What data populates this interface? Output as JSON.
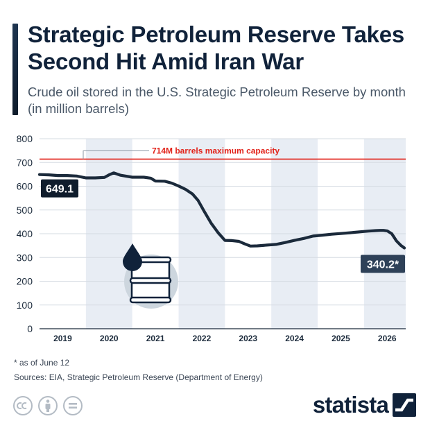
{
  "header": {
    "title": "Strategic Petroleum Reserve Takes Second Hit Amid Iran War",
    "subtitle": "Crude oil stored in the U.S. Strategic Petroleum Reserve by month (in million barrels)"
  },
  "chart_data": {
    "type": "line",
    "title": "Strategic Petroleum Reserve Takes Second Hit Amid Iran War",
    "subtitle": "Crude oil stored in the U.S. Strategic Petroleum Reserve by month (in million barrels)",
    "ylim": [
      0,
      800
    ],
    "yticks": [
      "0",
      "100",
      "200",
      "300",
      "400",
      "500",
      "600",
      "700",
      "800"
    ],
    "xticks": [
      "2019",
      "2020",
      "2021",
      "2022",
      "2023",
      "2024",
      "2025",
      "2026"
    ],
    "xlim": [
      2018.5,
      2026.4
    ],
    "shaded_years": [
      "2020",
      "2022",
      "2024",
      "2026"
    ],
    "grid": true,
    "reference_line": {
      "value": 714,
      "label": "714M barrels maximum capacity",
      "color": "#e2231a"
    },
    "series": [
      {
        "color": "#1b2a3b",
        "x": [
          2018.5,
          2018.7,
          2018.9,
          2019.1,
          2019.3,
          2019.5,
          2019.7,
          2019.9,
          2020.0,
          2020.1,
          2020.25,
          2020.5,
          2020.75,
          2020.9,
          2021.0,
          2021.2,
          2021.35,
          2021.5,
          2021.65,
          2021.8,
          2021.92,
          2022.05,
          2022.2,
          2022.35,
          2022.5,
          2022.65,
          2022.8,
          2022.92,
          2023.05,
          2023.2,
          2023.4,
          2023.6,
          2023.8,
          2024.0,
          2024.2,
          2024.4,
          2024.6,
          2024.8,
          2025.0,
          2025.2,
          2025.4,
          2025.6,
          2025.75,
          2025.85,
          2025.92,
          2026.0,
          2026.1,
          2026.2,
          2026.3,
          2026.37
        ],
        "values": [
          649.1,
          648,
          645,
          645,
          643,
          635,
          635,
          637,
          648,
          656,
          646,
          638,
          638,
          634,
          622,
          621,
          613,
          601,
          587,
          567,
          540,
          495,
          445,
          405,
          372,
          371,
          368,
          358,
          348,
          349,
          352,
          355,
          363,
          372,
          380,
          390,
          394,
          398,
          401,
          404,
          408,
          411,
          413,
          414,
          414,
          412,
          400,
          370,
          350,
          340.2
        ]
      }
    ],
    "start_label": "649.1",
    "end_label": "340.2*"
  },
  "footer": {
    "footnote": "* as of June 12",
    "sources": "Sources: EIA, Strategic Petroleum Reserve (Department of Energy)",
    "brand": "statista"
  },
  "icons": {
    "chart_illustration": "oil-barrel-icon",
    "license": [
      "creative-commons-icon",
      "attribution-icon",
      "no-derivatives-icon"
    ],
    "brand_mark": "statista-logo-icon"
  },
  "colors": {
    "navy": "#10223a",
    "line": "#1b2a3b",
    "capacity": "#e2231a",
    "shade": "#e8edf4",
    "label_bg_start": "#0f1c2c",
    "label_bg_end": "#2e4158"
  }
}
